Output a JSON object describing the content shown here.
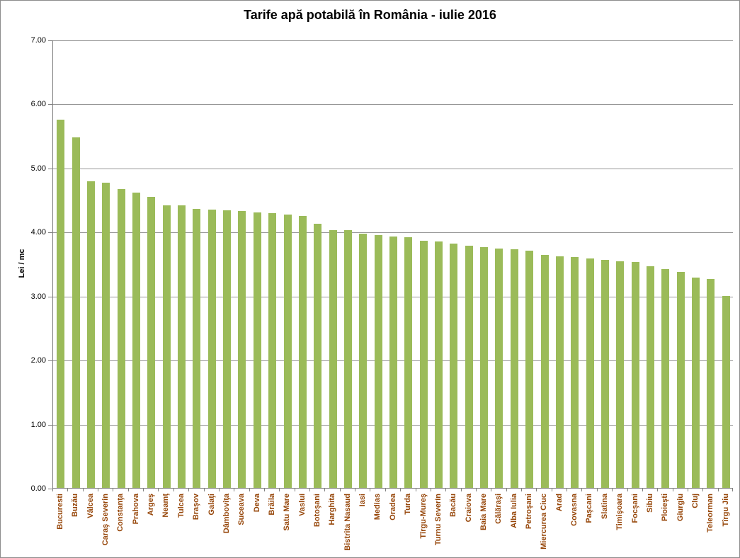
{
  "chart_data": {
    "type": "bar",
    "title": "Tarife apă potabilă în România - iulie 2016",
    "xlabel": "",
    "ylabel": "Lei / mc",
    "ylim": [
      0,
      7
    ],
    "ytick_step": 1,
    "ytick_decimals": 2,
    "grid": "horizontal-major",
    "legend_position": "none",
    "bar_color": "#9BBB59",
    "category_label_color": "#964609",
    "axis_color": "#808080",
    "gridline_color": "#969696",
    "title_color": "#000000",
    "categories": [
      "Bucuresti",
      "Buzău",
      "Vâlcea",
      "Caraş Severin",
      "Constanţa",
      "Prahova",
      "Argeş",
      "Neamţ",
      "Tulcea",
      "Braşov",
      "Galaţi",
      "Dâmboviţa",
      "Suceava",
      "Deva",
      "Brăila",
      "Satu Mare",
      "Vaslui",
      "Botoşani",
      "Harghita",
      "Bistrita Nasaud",
      "Iasi",
      "Medias",
      "Oradea",
      "Turda",
      "Tîrgu-Mureş",
      "Turnu Severin",
      "Bacău",
      "Craiova",
      "Baia Mare",
      "Călăraşi",
      "Alba Iulia",
      "Petroşani",
      "Miercurea Ciuc",
      "Arad",
      "Covasna",
      "Paşcani",
      "Slatina",
      "Timişoara",
      "Focşani",
      "Sibiu",
      "Ploieşti",
      "Giurgiu",
      "Cluj",
      "Teleorman",
      "Tîrgu Jiu"
    ],
    "values": [
      5.75,
      5.47,
      4.79,
      4.77,
      4.67,
      4.61,
      4.54,
      4.41,
      4.41,
      4.36,
      4.35,
      4.34,
      4.32,
      4.3,
      4.29,
      4.27,
      4.25,
      4.13,
      4.03,
      4.02,
      3.97,
      3.95,
      3.93,
      3.92,
      3.86,
      3.85,
      3.82,
      3.78,
      3.76,
      3.74,
      3.73,
      3.71,
      3.64,
      3.62,
      3.6,
      3.58,
      3.56,
      3.54,
      3.53,
      3.46,
      3.42,
      3.37,
      3.28,
      3.26,
      3.0
    ]
  }
}
